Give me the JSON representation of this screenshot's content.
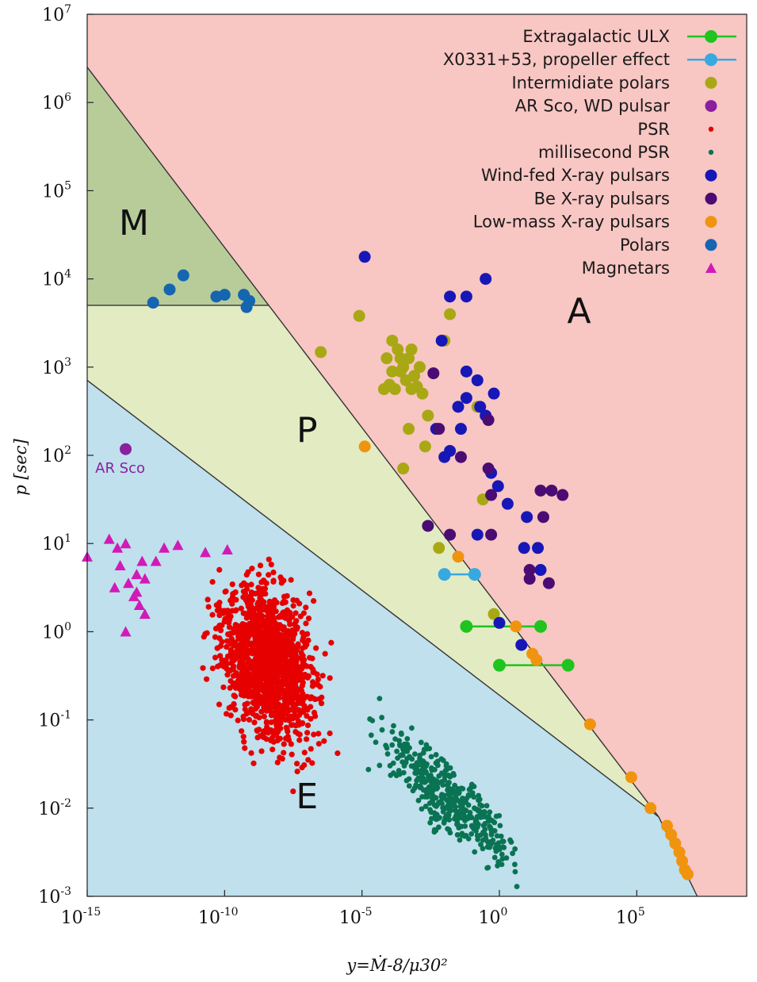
{
  "chart_data": {
    "type": "scatter",
    "xlabel": "y=Ṁ-8/μ30²",
    "ylabel": "p [sec]",
    "x_scale": "log",
    "y_scale": "log",
    "xlim_log10": [
      -15,
      9
    ],
    "ylim_log10": [
      -3,
      7
    ],
    "x_ticks": [
      {
        "base": "10",
        "exp": "-15",
        "log10": -15
      },
      {
        "base": "10",
        "exp": "-10",
        "log10": -10
      },
      {
        "base": "10",
        "exp": "-5",
        "log10": -5
      },
      {
        "base": "10",
        "exp": "0",
        "log10": 0
      },
      {
        "base": "10",
        "exp": "5",
        "log10": 5
      }
    ],
    "y_ticks": [
      {
        "base": "10",
        "exp": "7",
        "log10": 7
      },
      {
        "base": "10",
        "exp": "6",
        "log10": 6
      },
      {
        "base": "10",
        "exp": "5",
        "log10": 5
      },
      {
        "base": "10",
        "exp": "4",
        "log10": 4
      },
      {
        "base": "10",
        "exp": "3",
        "log10": 3
      },
      {
        "base": "10",
        "exp": "2",
        "log10": 2
      },
      {
        "base": "10",
        "exp": "1",
        "log10": 1
      },
      {
        "base": "10",
        "exp": "0",
        "log10": 0
      },
      {
        "base": "10",
        "exp": "-1",
        "log10": -1
      },
      {
        "base": "10",
        "exp": "-2",
        "log10": -2
      },
      {
        "base": "10",
        "exp": "-3",
        "log10": -3
      }
    ],
    "region_colors": {
      "A": "#f8c6c3",
      "P": "#e3ebc3",
      "M": "#b8cc9a",
      "E": "#bfe0ec"
    },
    "regions": [
      {
        "label": "A",
        "at_log10": [
          2.9,
          3.5
        ]
      },
      {
        "label": "P",
        "at_log10": [
          -7.0,
          2.15
        ]
      },
      {
        "label": "M",
        "at_log10": [
          -13.3,
          4.5
        ]
      },
      {
        "label": "E",
        "at_log10": [
          -7.0,
          -2.0
        ]
      }
    ],
    "boundaries_log10": [
      {
        "name": "A/P boundary",
        "from": [
          -15,
          6.4
        ],
        "to": [
          5.8,
          -2.1
        ]
      },
      {
        "name": "P/E boundary",
        "from": [
          -15,
          2.85
        ],
        "to": [
          5.8,
          -2.1
        ]
      },
      {
        "name": "A/E boundary",
        "from": [
          5.8,
          -2.1
        ],
        "to": [
          7.2,
          -3.0
        ]
      },
      {
        "name": "M/P boundary",
        "from": [
          -15,
          3.7
        ],
        "to": [
          -8.75,
          3.7
        ]
      }
    ],
    "annotations": [
      {
        "text": "AR Sco",
        "color": "#8a1fa0",
        "at_log10": [
          -13.8,
          1.8
        ]
      }
    ],
    "series": [
      {
        "name": "Extragalactic ULX",
        "color": "#1fc41f",
        "marker": "circle-line",
        "segments_log10": [
          [
            [
              -1.2,
              0.06
            ],
            [
              1.5,
              0.06
            ]
          ],
          [
            [
              0.0,
              -0.38
            ],
            [
              2.5,
              -0.38
            ]
          ]
        ]
      },
      {
        "name": "X0331+53, propeller effect",
        "color": "#37a9e1",
        "marker": "circle-line",
        "segments_log10": [
          [
            [
              -2.0,
              0.65
            ],
            [
              -0.9,
              0.65
            ]
          ]
        ]
      },
      {
        "name": "Intermidiate polars",
        "color": "#a8a814",
        "marker": "circle",
        "points_log10": [
          [
            -6.5,
            3.17
          ],
          [
            -5.1,
            3.58
          ],
          [
            -4.1,
            3.1
          ],
          [
            -3.9,
            3.3
          ],
          [
            -3.7,
            3.2
          ],
          [
            -3.5,
            3.0
          ],
          [
            -3.3,
            3.1
          ],
          [
            -3.1,
            2.9
          ],
          [
            -4.0,
            2.8
          ],
          [
            -3.8,
            2.75
          ],
          [
            -3.6,
            2.95
          ],
          [
            -3.4,
            2.85
          ],
          [
            -3.2,
            2.75
          ],
          [
            -3.0,
            2.78
          ],
          [
            -2.8,
            2.7
          ],
          [
            -3.9,
            2.95
          ],
          [
            -4.2,
            2.75
          ],
          [
            -3.3,
            2.3
          ],
          [
            -3.5,
            1.85
          ],
          [
            -2.6,
            2.45
          ],
          [
            -2.7,
            2.1
          ],
          [
            -2.0,
            3.3
          ],
          [
            -1.8,
            3.6
          ],
          [
            -2.2,
            0.95
          ],
          [
            -0.8,
            2.55
          ],
          [
            -0.6,
            1.5
          ],
          [
            -0.2,
            0.2
          ],
          [
            -3.2,
            3.2
          ],
          [
            -3.6,
            3.1
          ],
          [
            -2.9,
            3.0
          ]
        ]
      },
      {
        "name": "AR Sco, WD pulsar",
        "color": "#8a1fa0",
        "marker": "circle",
        "points_log10": [
          [
            -13.6,
            2.07
          ]
        ]
      },
      {
        "name": "PSR",
        "color": "#e60000",
        "marker": "dot",
        "points_log10": "generated cloud, roughly -12 < x < -5.8, -1.8 < y < 0.8"
      },
      {
        "name": "millisecond PSR",
        "color": "#0a7352",
        "marker": "dot",
        "points_log10": "generated cloud along a band, roughly -5.5 < x < 0.6, -3 < y < -0.5"
      },
      {
        "name": "Wind-fed X-ray pulsars",
        "color": "#1717b8",
        "marker": "circle",
        "points_log10": [
          [
            -4.9,
            4.25
          ],
          [
            -1.8,
            3.8
          ],
          [
            -1.2,
            3.8
          ],
          [
            -0.5,
            4.0
          ],
          [
            -2.1,
            3.3
          ],
          [
            -1.2,
            2.95
          ],
          [
            -0.8,
            2.85
          ],
          [
            -1.2,
            2.65
          ],
          [
            -0.7,
            2.55
          ],
          [
            -0.5,
            2.45
          ],
          [
            -0.2,
            2.7
          ],
          [
            -1.5,
            2.55
          ],
          [
            -1.4,
            2.3
          ],
          [
            -2.3,
            2.3
          ],
          [
            -1.8,
            2.05
          ],
          [
            -2.0,
            1.98
          ],
          [
            -0.3,
            1.8
          ],
          [
            -0.05,
            1.65
          ],
          [
            0.3,
            1.45
          ],
          [
            1.0,
            1.3
          ],
          [
            0.9,
            0.95
          ],
          [
            1.4,
            0.95
          ],
          [
            -0.8,
            1.1
          ],
          [
            1.5,
            0.7
          ],
          [
            -0.0,
            0.1
          ],
          [
            0.8,
            -0.15
          ]
        ]
      },
      {
        "name": "Be X-ray pulsars",
        "color": "#4a0c72",
        "marker": "circle",
        "points_log10": [
          [
            -2.4,
            2.93
          ],
          [
            -2.2,
            2.3
          ],
          [
            -1.4,
            1.98
          ],
          [
            -0.4,
            2.4
          ],
          [
            -0.4,
            1.85
          ],
          [
            -0.3,
            1.55
          ],
          [
            1.5,
            1.6
          ],
          [
            1.9,
            1.6
          ],
          [
            2.3,
            1.55
          ],
          [
            1.6,
            1.3
          ],
          [
            -2.6,
            1.2
          ],
          [
            -1.8,
            1.1
          ],
          [
            -0.3,
            1.1
          ],
          [
            1.1,
            0.7
          ],
          [
            1.8,
            0.55
          ],
          [
            1.1,
            0.6
          ]
        ]
      },
      {
        "name": "Low-mass X-ray pulsars",
        "color": "#f0940f",
        "marker": "circle",
        "points_log10": [
          [
            -4.9,
            2.1
          ],
          [
            -1.5,
            0.85
          ],
          [
            0.6,
            0.06
          ],
          [
            1.2,
            -0.25
          ],
          [
            1.35,
            -0.32
          ],
          [
            3.3,
            -1.05
          ],
          [
            4.8,
            -1.65
          ],
          [
            5.5,
            -2.0
          ],
          [
            6.1,
            -2.2
          ],
          [
            6.25,
            -2.3
          ],
          [
            6.4,
            -2.4
          ],
          [
            6.55,
            -2.5
          ],
          [
            6.65,
            -2.6
          ],
          [
            6.75,
            -2.7
          ],
          [
            6.85,
            -2.75
          ]
        ]
      },
      {
        "name": "Polars",
        "color": "#1565b0",
        "marker": "circle",
        "points_log10": [
          [
            -12.6,
            3.73
          ],
          [
            -12.0,
            3.88
          ],
          [
            -11.5,
            4.04
          ],
          [
            -10.3,
            3.8
          ],
          [
            -10.0,
            3.82
          ],
          [
            -9.3,
            3.82
          ],
          [
            -9.1,
            3.75
          ],
          [
            -9.2,
            3.68
          ]
        ]
      },
      {
        "name": "Magnetars",
        "color": "#d11ab8",
        "marker": "triangle",
        "points_log10": [
          [
            -15.0,
            0.85
          ],
          [
            -14.2,
            1.05
          ],
          [
            -13.9,
            0.95
          ],
          [
            -13.8,
            0.75
          ],
          [
            -13.6,
            1.0
          ],
          [
            -14.0,
            0.5
          ],
          [
            -13.5,
            0.55
          ],
          [
            -13.2,
            0.65
          ],
          [
            -13.0,
            0.8
          ],
          [
            -12.9,
            0.6
          ],
          [
            -13.3,
            0.4
          ],
          [
            -13.1,
            0.3
          ],
          [
            -12.9,
            0.2
          ],
          [
            -13.6,
            0.0
          ],
          [
            -12.5,
            0.8
          ],
          [
            -12.2,
            0.95
          ],
          [
            -11.7,
            0.98
          ],
          [
            -10.7,
            0.9
          ],
          [
            -9.9,
            0.93
          ],
          [
            -13.2,
            0.45
          ]
        ]
      }
    ],
    "legend_placement": "top-right",
    "grid": false
  }
}
